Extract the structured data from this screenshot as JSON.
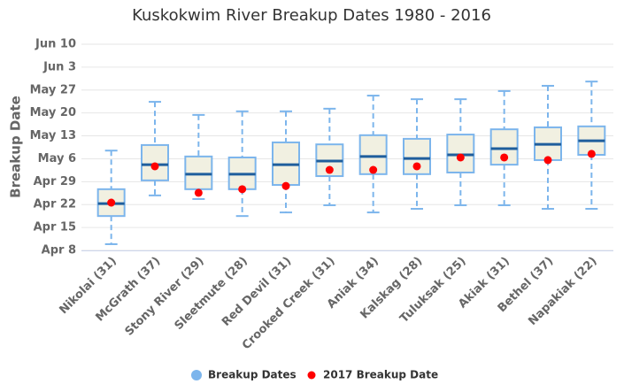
{
  "chart_data": {
    "type": "box",
    "title": "Kuskokwim River Breakup Dates 1980 - 2016",
    "y_label": "Breakup Date",
    "categories": [
      "Nikolai (31)",
      "McGrath (37)",
      "Stony River (29)",
      "Sleetmute (28)",
      "Red Devil (31)",
      "Crooked Creek (31)",
      "Aniak (34)",
      "Kalskag (28)",
      "Tuluksak (25)",
      "Akiak (31)",
      "Bethel (37)",
      "Napakiak (22)"
    ],
    "series": [
      {
        "name": "Breakup Dates",
        "color": "#7cb5ec",
        "fill": "#f1f0e1",
        "median_color": "#1f5e9c",
        "low": [
          99.9,
          114.8,
          113.7,
          108.5,
          109.6,
          111.8,
          109.6,
          110.7,
          111.8,
          111.8,
          110.7,
          110.7
        ],
        "q1": [
          108.5,
          119.4,
          116.7,
          116.7,
          118,
          120.7,
          121.3,
          121.3,
          121.8,
          124.2,
          125.6,
          127.2
        ],
        "median": [
          112.3,
          124.2,
          121.3,
          121.3,
          124.2,
          125.3,
          126.7,
          126.1,
          127.2,
          129.1,
          130.4,
          131.5
        ],
        "q3": [
          116.7,
          130.2,
          126.7,
          126.4,
          131,
          130.4,
          133.2,
          132.1,
          133.4,
          135,
          135.6,
          135.9
        ],
        "high": [
          128.5,
          143.4,
          139.4,
          140.5,
          140.5,
          141.3,
          145.3,
          144.2,
          144.2,
          146.7,
          148.3,
          149.6
        ]
      },
      {
        "name": "2017 Breakup Date",
        "color": "#ff0000",
        "values": [
          112.6,
          123.7,
          115.6,
          116.7,
          117.7,
          122.6,
          122.6,
          123.7,
          126.4,
          126.4,
          125.6,
          127.5
        ]
      }
    ],
    "ylim": [
      98,
      161
    ],
    "yticks": [
      {
        "value": 98,
        "label": "Apr 8"
      },
      {
        "value": 105,
        "label": "Apr 15"
      },
      {
        "value": 112,
        "label": "Apr 22"
      },
      {
        "value": 119,
        "label": "Apr 29"
      },
      {
        "value": 126,
        "label": "May 6"
      },
      {
        "value": 133,
        "label": "May 13"
      },
      {
        "value": 140,
        "label": "May 20"
      },
      {
        "value": 147,
        "label": "May 27"
      },
      {
        "value": 154,
        "label": "Jun 3"
      },
      {
        "value": 161,
        "label": "Jun 10"
      }
    ],
    "grid": true
  }
}
